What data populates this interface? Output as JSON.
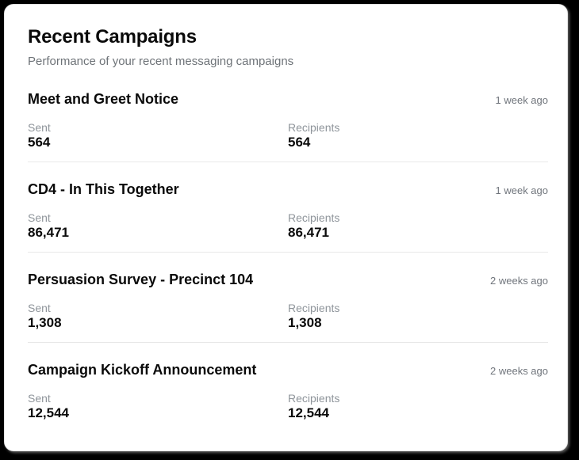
{
  "colors": {
    "page-bg": "#000000",
    "card-bg": "#ffffff",
    "card-border": "#e5e5e5",
    "divider": "#e8e8e8",
    "text-primary": "#0a0a0a",
    "text-muted": "#6e7378",
    "text-time": "#70757c",
    "text-label": "#8f959b"
  },
  "card": {
    "title": "Recent Campaigns",
    "subtitle": "Performance of your recent messaging campaigns",
    "stat_labels": {
      "sent": "Sent",
      "recipients": "Recipients"
    },
    "campaigns": [
      {
        "name": "Meet and Greet Notice",
        "time": "1 week ago",
        "sent": "564",
        "recipients": "564"
      },
      {
        "name": "CD4 - In This Together",
        "time": "1 week ago",
        "sent": "86,471",
        "recipients": "86,471"
      },
      {
        "name": "Persuasion Survey - Precinct 104",
        "time": "2 weeks ago",
        "sent": "1,308",
        "recipients": "1,308"
      },
      {
        "name": "Campaign Kickoff Announcement",
        "time": "2 weeks ago",
        "sent": "12,544",
        "recipients": "12,544"
      }
    ]
  }
}
